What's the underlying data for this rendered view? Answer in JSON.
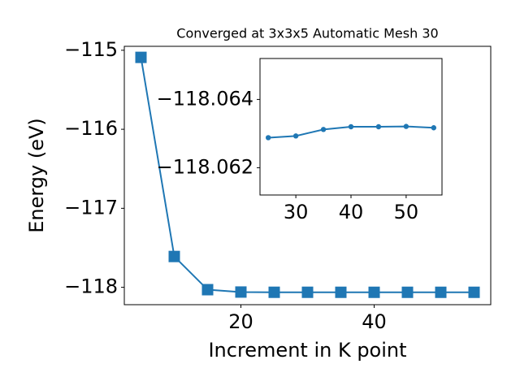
{
  "chart_data": [
    {
      "type": "line",
      "title": "Converged at 3x3x5 Automatic Mesh 30",
      "xlabel": "Increment in K point",
      "ylabel": "Energy (eV)",
      "x": [
        5,
        10,
        15,
        20,
        25,
        30,
        35,
        40,
        45,
        50,
        55
      ],
      "series": [
        {
          "color": "#1f77b4",
          "marker": "square",
          "values": [
            -115.09,
            -117.61,
            -118.03,
            -118.06,
            -118.06288,
            -118.06293,
            -118.06312,
            -118.0632,
            -118.0632,
            -118.06321,
            -118.06317
          ]
        }
      ],
      "xlim": [
        2.5,
        57.5
      ],
      "ylim": [
        -118.22,
        -114.95
      ],
      "xticks": [
        20,
        40
      ],
      "yticks": [
        {
          "value": -118,
          "label": "−118"
        },
        {
          "value": -117,
          "label": "−117"
        },
        {
          "value": -116,
          "label": "−116"
        },
        {
          "value": -115,
          "label": "−115"
        }
      ]
    },
    {
      "type": "line",
      "x": [
        25,
        30,
        35,
        40,
        45,
        50,
        55
      ],
      "series": [
        {
          "color": "#1f77b4",
          "marker": "circle",
          "values": [
            -118.06288,
            -118.06293,
            -118.06312,
            -118.0632,
            -118.0632,
            -118.06321,
            -118.06317
          ]
        }
      ],
      "xlim": [
        23.5,
        56.5
      ],
      "ylim": [
        -118.0612,
        -118.0652
      ],
      "xticks": [
        30,
        40,
        50
      ],
      "yticks": [
        {
          "value": -118.064,
          "label": "−118.064"
        },
        {
          "value": -118.062,
          "label": "−118.062"
        }
      ]
    }
  ]
}
